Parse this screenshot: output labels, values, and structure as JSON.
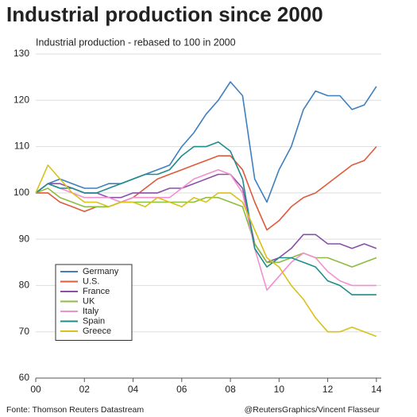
{
  "chart_data": {
    "type": "line",
    "title": "Industrial production since 2000",
    "subtitle": "Industrial production - rebased to 100 in 2000",
    "source": "Fonte: Thomson Reuters Datastream",
    "credit": "@ReutersGraphics/Vincent Flasseur",
    "x": [
      2000,
      2000.5,
      2001,
      2001.5,
      2002,
      2002.5,
      2003,
      2003.5,
      2004,
      2004.5,
      2005,
      2005.5,
      2006,
      2006.5,
      2007,
      2007.5,
      2008,
      2008.5,
      2009,
      2009.5,
      2010,
      2010.5,
      2011,
      2011.5,
      2012,
      2012.5,
      2013,
      2013.5,
      2014
    ],
    "xlim": [
      2000,
      2014.2
    ],
    "xticks": [
      {
        "value": 2000,
        "label": "00"
      },
      {
        "value": 2002,
        "label": "02"
      },
      {
        "value": 2004,
        "label": "04"
      },
      {
        "value": 2006,
        "label": "06"
      },
      {
        "value": 2008,
        "label": "08"
      },
      {
        "value": 2010,
        "label": "10"
      },
      {
        "value": 2012,
        "label": "12"
      },
      {
        "value": 2014,
        "label": "14"
      }
    ],
    "ylim": [
      60,
      130
    ],
    "yticks": [
      60,
      70,
      80,
      90,
      100,
      110,
      120,
      130
    ],
    "grid": true,
    "legend": "lower-left",
    "series": [
      {
        "name": "Germany",
        "color": "#3f7fbf",
        "values": [
          100,
          102,
          103,
          102,
          101,
          101,
          102,
          102,
          103,
          104,
          105,
          106,
          110,
          113,
          117,
          120,
          124,
          121,
          103,
          98,
          105,
          110,
          118,
          122,
          121,
          121,
          118,
          119,
          123
        ]
      },
      {
        "name": "U.S.",
        "color": "#e05a3a",
        "values": [
          100,
          100,
          98,
          97,
          96,
          97,
          97,
          98,
          99,
          101,
          103,
          104,
          105,
          106,
          107,
          108,
          108,
          105,
          98,
          92,
          94,
          97,
          99,
          100,
          102,
          104,
          106,
          107,
          110
        ]
      },
      {
        "name": "France",
        "color": "#8a50a8",
        "values": [
          100,
          102,
          102,
          101,
          100,
          100,
          99,
          99,
          100,
          100,
          100,
          101,
          101,
          102,
          103,
          104,
          104,
          101,
          89,
          85,
          86,
          88,
          91,
          91,
          89,
          89,
          88,
          89,
          88
        ]
      },
      {
        "name": "UK",
        "color": "#8cbd3e",
        "values": [
          100,
          101,
          99,
          98,
          97,
          97,
          97,
          98,
          98,
          98,
          98,
          98,
          98,
          98,
          99,
          99,
          98,
          97,
          89,
          85,
          85,
          86,
          87,
          86,
          86,
          85,
          84,
          85,
          86
        ]
      },
      {
        "name": "Italy",
        "color": "#f28fd0",
        "values": [
          100,
          102,
          101,
          100,
          99,
          99,
          99,
          98,
          99,
          99,
          99,
          99,
          101,
          103,
          104,
          105,
          104,
          100,
          88,
          79,
          82,
          85,
          87,
          86,
          83,
          81,
          80,
          80,
          80
        ]
      },
      {
        "name": "Spain",
        "color": "#1f8c8c",
        "values": [
          100,
          102,
          101,
          101,
          100,
          100,
          101,
          102,
          103,
          104,
          104,
          105,
          108,
          110,
          110,
          111,
          109,
          103,
          88,
          84,
          86,
          86,
          85,
          84,
          81,
          80,
          78,
          78,
          78
        ]
      },
      {
        "name": "Greece",
        "color": "#d8c21a",
        "values": [
          100,
          106,
          103,
          100,
          98,
          98,
          97,
          98,
          98,
          97,
          99,
          98,
          97,
          99,
          98,
          100,
          100,
          98,
          92,
          86,
          84,
          80,
          77,
          73,
          70,
          70,
          71,
          70,
          69
        ]
      }
    ]
  }
}
